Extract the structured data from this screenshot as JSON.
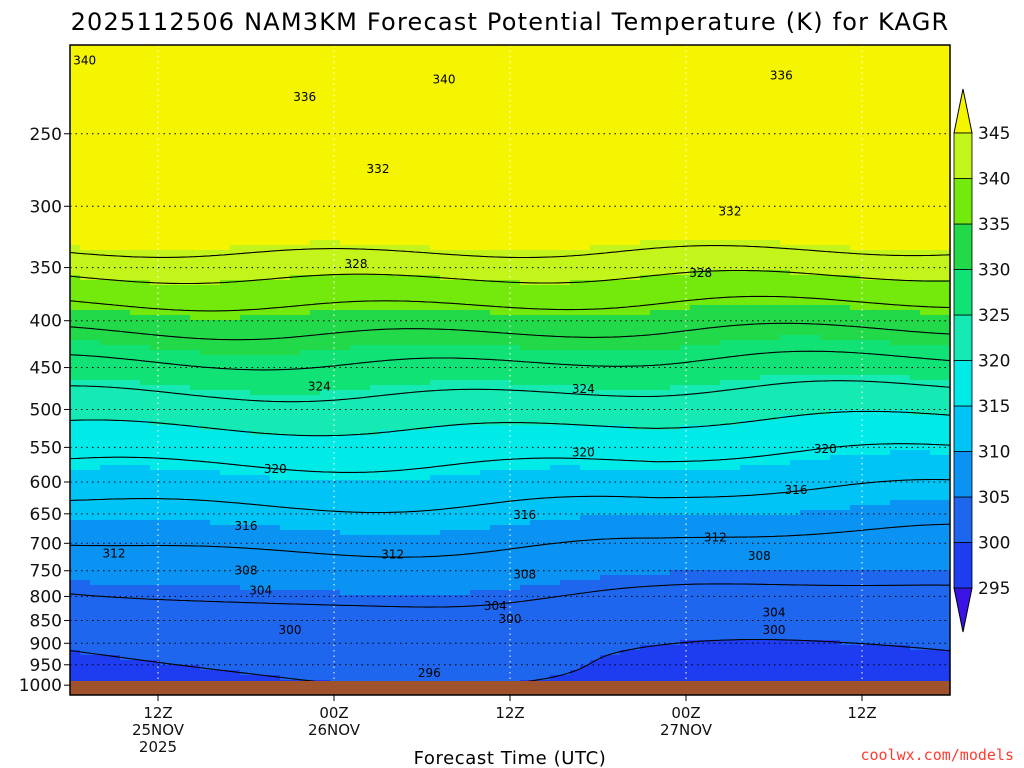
{
  "title": "2025112506 NAM3KM Forecast Potential Temperature (K) for KAGR",
  "credit": "coolwx.com/models",
  "colors": {
    "ground": "#a0522d",
    "contour": "#000000",
    "credit": "#ff3b30"
  },
  "chart_data": {
    "type": "heatmap",
    "title": "2025112506 NAM3KM Forecast Potential Temperature (K) for KAGR",
    "xlabel": "Forecast Time (UTC)",
    "ylabel": "",
    "x_range_hours": [
      0,
      60
    ],
    "y_range_hPa": [
      1025,
      200
    ],
    "y_scale": "log",
    "y_ticks": [
      250,
      300,
      350,
      400,
      450,
      500,
      550,
      600,
      650,
      700,
      750,
      800,
      850,
      900,
      950,
      1000
    ],
    "y_tick_labels": [
      "250",
      "300",
      "350",
      "400",
      "450",
      "500",
      "550",
      "600",
      "650",
      "700",
      "750",
      "800",
      "850",
      "900",
      "950",
      "1000"
    ],
    "x_ticks": [
      {
        "hour": 6,
        "lines": [
          "12Z",
          "25NOV",
          "2025"
        ]
      },
      {
        "hour": 18,
        "lines": [
          "00Z",
          "26NOV"
        ]
      },
      {
        "hour": 30,
        "lines": [
          "12Z"
        ]
      },
      {
        "hour": 42,
        "lines": [
          "00Z",
          "27NOV"
        ]
      },
      {
        "hour": 54,
        "lines": [
          "12Z"
        ]
      }
    ],
    "colorbar": {
      "labels": [
        "295",
        "300",
        "305",
        "310",
        "315",
        "320",
        "325",
        "330",
        "335",
        "340",
        "345"
      ],
      "levels": [
        295,
        300,
        305,
        310,
        315,
        320,
        325,
        330,
        335,
        340,
        345
      ],
      "colors": [
        "#3a14e6",
        "#1f3df0",
        "#1f66ee",
        "#0a93f2",
        "#00c4f5",
        "#00eae8",
        "#15e9b4",
        "#10e276",
        "#22d94a",
        "#74ea0c",
        "#c4f51a",
        "#f5f500"
      ],
      "extends": "both"
    },
    "contour_interval": 4,
    "contour_labels": [
      {
        "value": "340",
        "hour": 1.0,
        "pressure": 208
      },
      {
        "value": "340",
        "hour": 25.5,
        "pressure": 218
      },
      {
        "value": "336",
        "hour": 16.0,
        "pressure": 228
      },
      {
        "value": "336",
        "hour": 48.5,
        "pressure": 216
      },
      {
        "value": "332",
        "hour": 21.0,
        "pressure": 273
      },
      {
        "value": "332",
        "hour": 45.0,
        "pressure": 304
      },
      {
        "value": "328",
        "hour": 19.5,
        "pressure": 347
      },
      {
        "value": "328",
        "hour": 43.0,
        "pressure": 355
      },
      {
        "value": "324",
        "hour": 17.0,
        "pressure": 472
      },
      {
        "value": "324",
        "hour": 35.0,
        "pressure": 475
      },
      {
        "value": "320",
        "hour": 14.0,
        "pressure": 581
      },
      {
        "value": "320",
        "hour": 35.0,
        "pressure": 557
      },
      {
        "value": "320",
        "hour": 51.5,
        "pressure": 552
      },
      {
        "value": "316",
        "hour": 12.0,
        "pressure": 670
      },
      {
        "value": "316",
        "hour": 31.0,
        "pressure": 652
      },
      {
        "value": "316",
        "hour": 49.5,
        "pressure": 612
      },
      {
        "value": "312",
        "hour": 3.0,
        "pressure": 718
      },
      {
        "value": "312",
        "hour": 22.0,
        "pressure": 720
      },
      {
        "value": "312",
        "hour": 44.0,
        "pressure": 690
      },
      {
        "value": "308",
        "hour": 12.0,
        "pressure": 750
      },
      {
        "value": "308",
        "hour": 31.0,
        "pressure": 757
      },
      {
        "value": "308",
        "hour": 47.0,
        "pressure": 723
      },
      {
        "value": "304",
        "hour": 13.0,
        "pressure": 788
      },
      {
        "value": "304",
        "hour": 29.0,
        "pressure": 820
      },
      {
        "value": "304",
        "hour": 48.0,
        "pressure": 833
      },
      {
        "value": "300",
        "hour": 15.0,
        "pressure": 870
      },
      {
        "value": "300",
        "hour": 30.0,
        "pressure": 847
      },
      {
        "value": "300",
        "hour": 48.0,
        "pressure": 870
      },
      {
        "value": "296",
        "hour": 24.5,
        "pressure": 970
      }
    ]
  }
}
